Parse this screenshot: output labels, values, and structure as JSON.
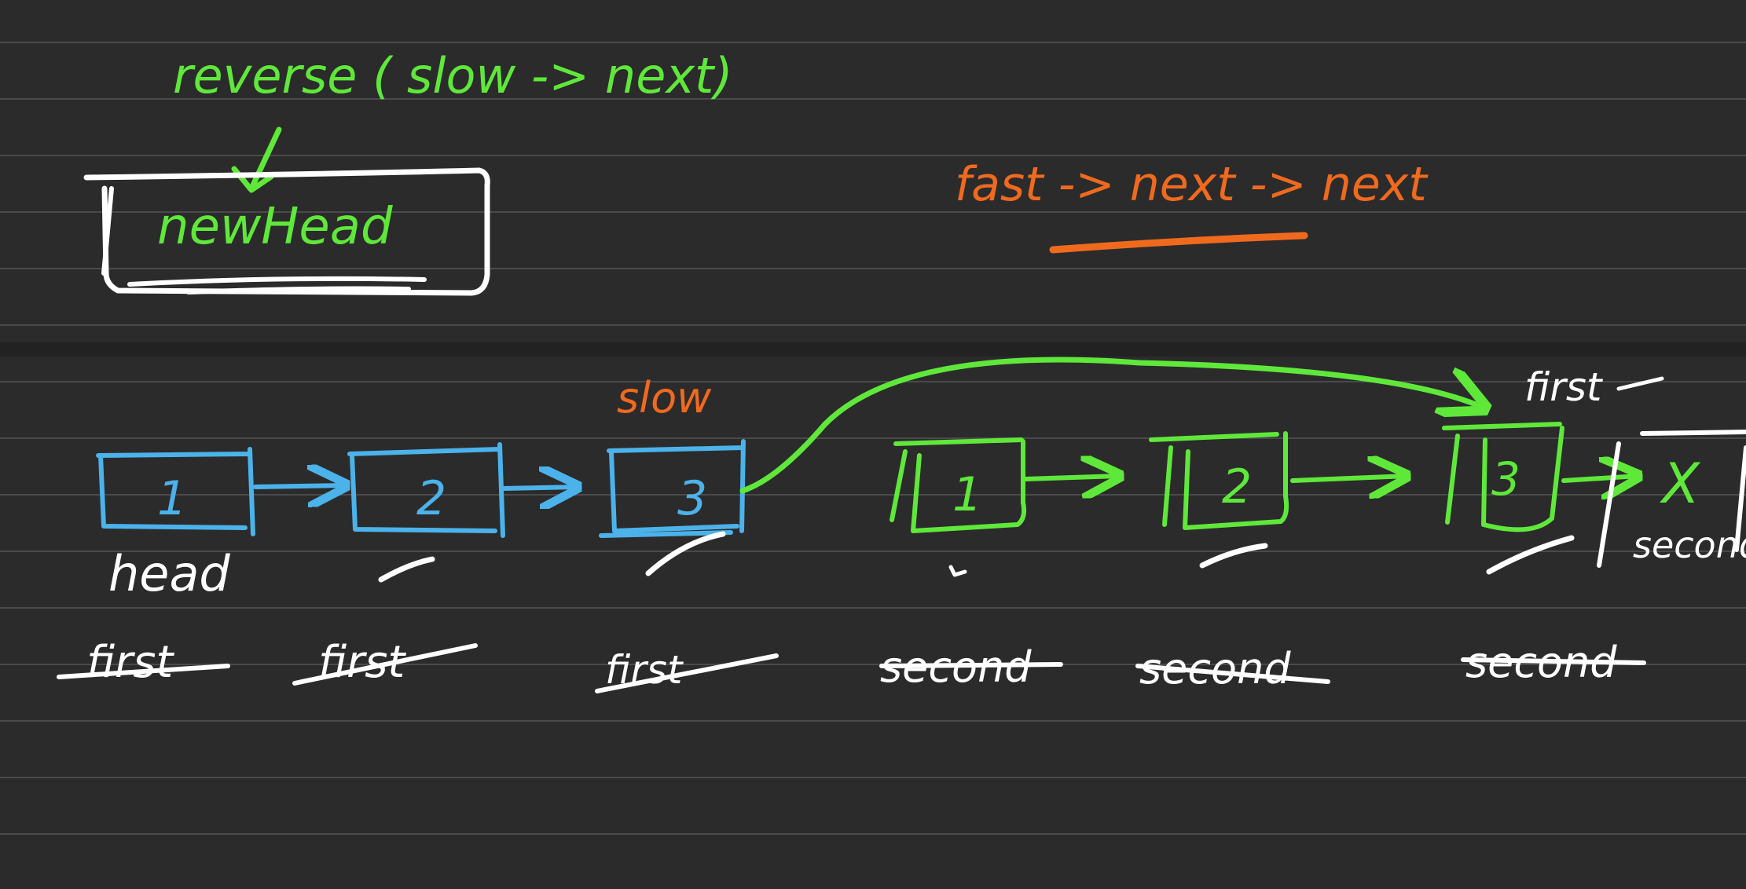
{
  "colors": {
    "background": "#2b2b2c",
    "ruled_line": "#4a4a4c",
    "page_gap": "#222223",
    "green": "#5fe83a",
    "blue": "#4cb2ea",
    "orange": "#f06a1e",
    "white": "#ffffff"
  },
  "top_page": {
    "green_note": "reverse ( slow -> next)",
    "box_label": "newHead",
    "orange_note": "fast -> next -> next"
  },
  "bottom_page": {
    "slow_label": "slow",
    "first_label_right": "first",
    "second_label_right": "second",
    "first_half": [
      {
        "value": "1",
        "below": "head"
      },
      {
        "value": "2",
        "below": ""
      },
      {
        "value": "3",
        "below": ""
      }
    ],
    "second_half": [
      {
        "value": "1"
      },
      {
        "value": "2"
      },
      {
        "value": "3"
      }
    ],
    "null_mark": "X",
    "strike_row": [
      "first",
      "first",
      "first",
      "second",
      "second",
      "second"
    ]
  }
}
